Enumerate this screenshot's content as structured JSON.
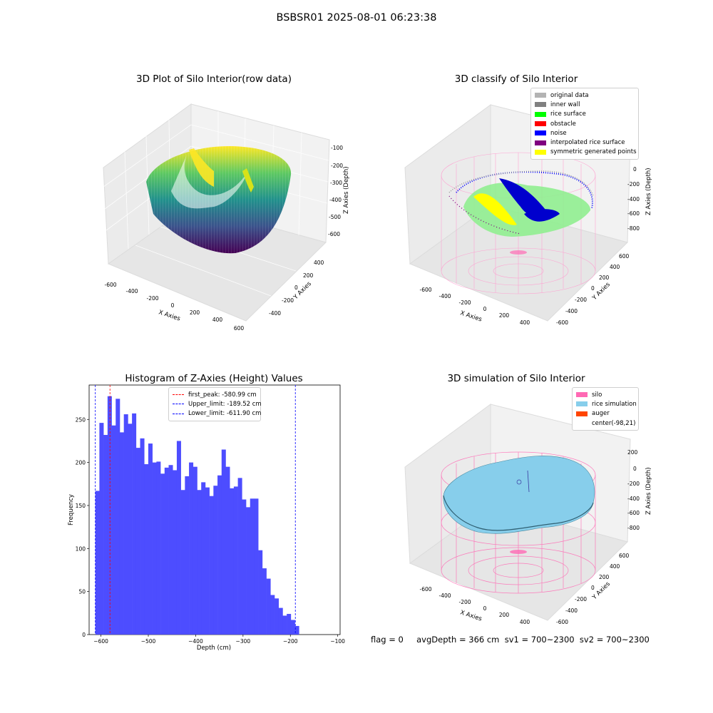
{
  "suptitle": "BSBSR01 2025-08-01 06:23:38",
  "panels": {
    "raw": {
      "title": "3D Plot of Silo Interior(row data)",
      "xlabel": "X Axies",
      "ylabel": "Y Axies",
      "zlabel": "Z Axies (Depth)",
      "xticks": [
        "-600",
        "-400",
        "-200",
        "0",
        "200",
        "400",
        "600"
      ],
      "yticks": [
        "-400",
        "-200",
        "0",
        "200",
        "400"
      ],
      "zticks": [
        "-100",
        "-200",
        "-300",
        "-400",
        "-500",
        "-600"
      ]
    },
    "classify": {
      "title": "3D classify of Silo Interior",
      "xlabel": "X Axies",
      "ylabel": "Y Axies",
      "zlabel": "Z Axies (Depth)",
      "xticks": [
        "-600",
        "-400",
        "-200",
        "0",
        "200",
        "400"
      ],
      "yticks": [
        "-600",
        "-400",
        "-200",
        "0",
        "200",
        "400",
        "600"
      ],
      "zticks": [
        "200",
        "0",
        "-200",
        "-400",
        "-600",
        "-800"
      ],
      "legend": [
        {
          "label": "original data",
          "color": "#b3b3b3"
        },
        {
          "label": "inner wall",
          "color": "#808080"
        },
        {
          "label": "rice surface",
          "color": "#00ff00"
        },
        {
          "label": "obstacle",
          "color": "#ff0000"
        },
        {
          "label": "noise",
          "color": "#0000ff"
        },
        {
          "label": "interpolated rice surface",
          "color": "#800080"
        },
        {
          "label": "symmetric generated points",
          "color": "#ffff00"
        }
      ]
    },
    "simulation": {
      "title": "3D simulation of Silo Interior",
      "xlabel": "X Axies",
      "ylabel": "Y Axies",
      "zlabel": "Z Axies (Depth)",
      "xticks": [
        "-600",
        "-400",
        "-200",
        "0",
        "200",
        "400"
      ],
      "yticks": [
        "-600",
        "-400",
        "-200",
        "0",
        "200",
        "400",
        "600"
      ],
      "zticks": [
        "200",
        "0",
        "-200",
        "-400",
        "-600",
        "-800"
      ],
      "legend": [
        {
          "label": "silo",
          "color": "#ff69b4"
        },
        {
          "label": "rice simulation",
          "color": "#87ceeb"
        },
        {
          "label": "auger",
          "color": "#ff4500"
        },
        {
          "label": "center(-98,21)",
          "color": ""
        }
      ]
    }
  },
  "chart_data": [
    {
      "type": "heatmap",
      "title": "3D Plot of Silo Interior(row data)",
      "note": "3D scatter of raw depth points, coloured by depth",
      "xlim": [
        -600,
        600
      ],
      "ylim": [
        -450,
        450
      ],
      "zlim": [
        -650,
        -100
      ]
    },
    {
      "type": "scatter",
      "title": "3D classify of Silo Interior",
      "series": [
        {
          "name": "original data"
        },
        {
          "name": "inner wall"
        },
        {
          "name": "rice surface"
        },
        {
          "name": "obstacle"
        },
        {
          "name": "noise"
        },
        {
          "name": "interpolated rice surface"
        },
        {
          "name": "symmetric generated points"
        }
      ]
    },
    {
      "type": "bar",
      "title": "Histogram of Z-Axies (Height) Values",
      "xlabel": "Depth (cm)",
      "ylabel": "Frequency",
      "xlim": [
        -625,
        -95
      ],
      "ylim": [
        0,
        290
      ],
      "xticks": [
        -600,
        -500,
        -400,
        -300,
        -200,
        -100
      ],
      "yticks": [
        0,
        50,
        100,
        150,
        200,
        250
      ],
      "bin_width": 8.6,
      "bin_start": -611.9,
      "values": [
        167,
        246,
        232,
        277,
        243,
        274,
        235,
        256,
        245,
        257,
        217,
        228,
        198,
        222,
        200,
        201,
        187,
        194,
        197,
        191,
        225,
        168,
        184,
        200,
        195,
        168,
        177,
        171,
        161,
        173,
        185,
        215,
        195,
        170,
        172,
        182,
        157,
        148,
        158,
        158,
        98,
        77,
        65,
        46,
        42,
        31,
        22,
        24,
        17,
        10
      ],
      "vlines": [
        {
          "label": "first_peak: -580.99 cm",
          "x": -580.99,
          "color": "#ff0000"
        },
        {
          "label": "Upper_limit: -189.52 cm",
          "x": -189.52,
          "color": "#0000ff"
        },
        {
          "label": "Lower_limit: -611.90 cm",
          "x": -611.9,
          "color": "#0000ff"
        }
      ],
      "bar_color": "#4d4dff"
    },
    {
      "type": "area",
      "title": "3D simulation of Silo Interior",
      "series": [
        {
          "name": "silo"
        },
        {
          "name": "rice simulation"
        },
        {
          "name": "auger"
        },
        {
          "name": "center(-98,21)"
        }
      ]
    }
  ],
  "footer": "flag = 0     avgDepth = 366 cm  sv1 = 700~2300  sv2 = 700~2300"
}
